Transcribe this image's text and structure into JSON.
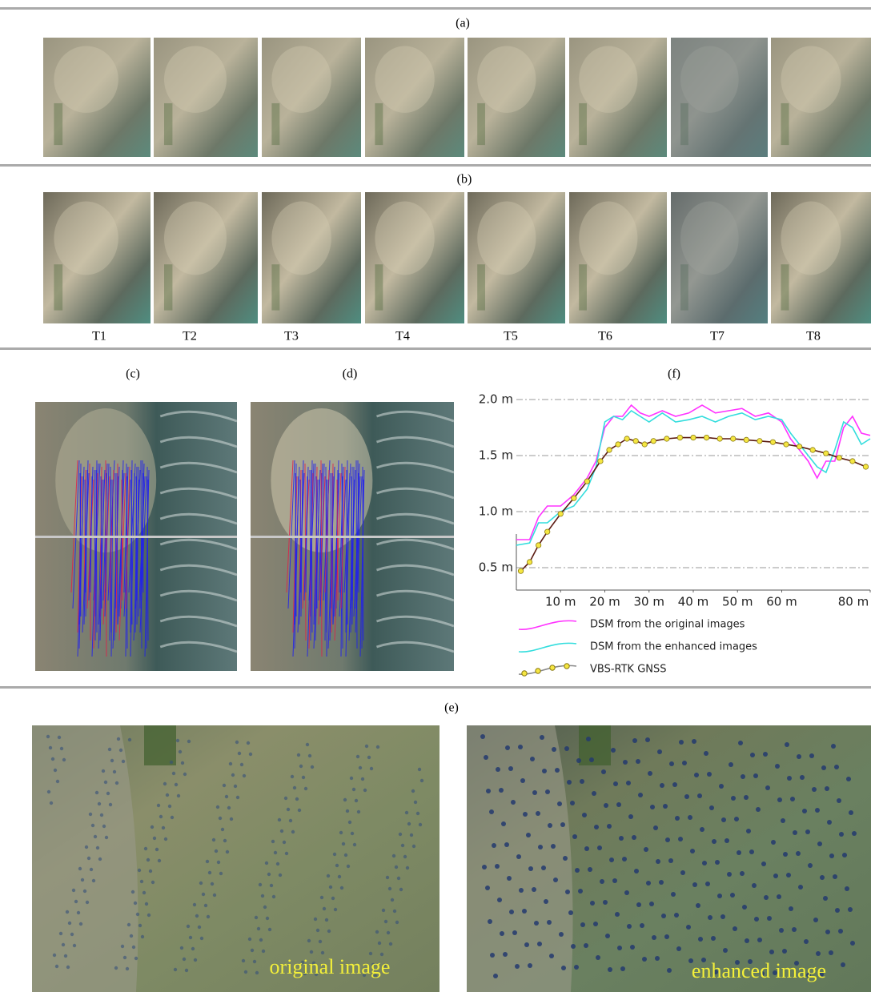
{
  "panels": {
    "a": "(a)",
    "b": "(b)",
    "c": "(c)",
    "d": "(d)",
    "e": "(e)",
    "f": "(f)"
  },
  "time_labels": [
    "T1",
    "T2",
    "T3",
    "T4",
    "T5",
    "T6",
    "T7",
    "T8"
  ],
  "image_captions": {
    "original": "original image",
    "enhanced": "enhanced image"
  },
  "chart_data": {
    "type": "line",
    "xlim": [
      0,
      80
    ],
    "ylim": [
      0.3,
      2.1
    ],
    "xticks": [
      {
        "value": 10,
        "label": "10 m"
      },
      {
        "value": 20,
        "label": "20 m"
      },
      {
        "value": 30,
        "label": "30 m"
      },
      {
        "value": 40,
        "label": "40 m"
      },
      {
        "value": 50,
        "label": "50 m"
      },
      {
        "value": 60,
        "label": "60 m"
      },
      {
        "value": 80,
        "label": "80 m"
      }
    ],
    "yticks": [
      {
        "value": 0.5,
        "label": "0.5 m"
      },
      {
        "value": 1.0,
        "label": "1.0 m"
      },
      {
        "value": 1.5,
        "label": "1.5 m"
      },
      {
        "value": 2.0,
        "label": "2.0 m"
      }
    ],
    "grid": true,
    "series": [
      {
        "name": "DSM from the original images",
        "color": "#ff33ff",
        "markers": false,
        "x": [
          0,
          3,
          5,
          7,
          10,
          13,
          16,
          18,
          20,
          22,
          24,
          26,
          28,
          30,
          33,
          36,
          39,
          42,
          45,
          48,
          51,
          54,
          57,
          60,
          62,
          64,
          66,
          68,
          70,
          72,
          74,
          76,
          78,
          80
        ],
        "values": [
          0.75,
          0.75,
          0.95,
          1.05,
          1.05,
          1.15,
          1.3,
          1.45,
          1.75,
          1.85,
          1.85,
          1.95,
          1.88,
          1.85,
          1.9,
          1.85,
          1.88,
          1.95,
          1.88,
          1.9,
          1.92,
          1.85,
          1.88,
          1.8,
          1.65,
          1.55,
          1.45,
          1.3,
          1.45,
          1.45,
          1.75,
          1.85,
          1.7,
          1.68
        ]
      },
      {
        "name": "DSM from the enhanced images",
        "color": "#33dddd",
        "markers": false,
        "x": [
          0,
          3,
          5,
          7,
          10,
          13,
          16,
          18,
          20,
          22,
          24,
          26,
          28,
          30,
          33,
          36,
          39,
          42,
          45,
          48,
          51,
          54,
          57,
          60,
          62,
          64,
          66,
          68,
          70,
          72,
          74,
          76,
          78,
          80
        ],
        "values": [
          0.7,
          0.72,
          0.9,
          0.9,
          1.0,
          1.05,
          1.2,
          1.4,
          1.8,
          1.85,
          1.82,
          1.9,
          1.85,
          1.8,
          1.88,
          1.8,
          1.82,
          1.85,
          1.8,
          1.85,
          1.88,
          1.82,
          1.85,
          1.82,
          1.7,
          1.6,
          1.5,
          1.4,
          1.35,
          1.55,
          1.8,
          1.75,
          1.6,
          1.65
        ]
      },
      {
        "name": "VBS-RTK GNSS",
        "color": "#5a1a10",
        "marker_color": "#f5e642",
        "markers": true,
        "x": [
          1,
          3,
          5,
          7,
          10,
          13,
          16,
          19,
          21,
          23,
          25,
          27,
          29,
          31,
          34,
          37,
          40,
          43,
          46,
          49,
          52,
          55,
          58,
          61,
          64,
          67,
          70,
          73,
          76,
          79
        ],
        "values": [
          0.47,
          0.55,
          0.7,
          0.82,
          0.98,
          1.12,
          1.27,
          1.45,
          1.55,
          1.6,
          1.65,
          1.63,
          1.6,
          1.63,
          1.65,
          1.66,
          1.66,
          1.66,
          1.65,
          1.65,
          1.64,
          1.63,
          1.62,
          1.6,
          1.58,
          1.55,
          1.52,
          1.48,
          1.45,
          1.4
        ]
      }
    ]
  }
}
